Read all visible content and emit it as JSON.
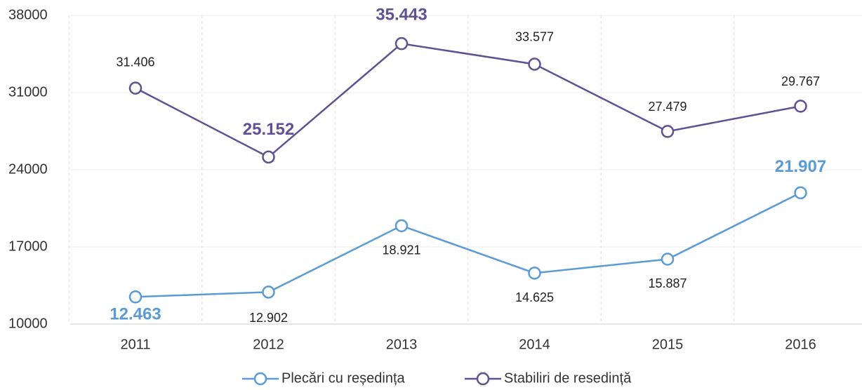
{
  "chart_data": {
    "type": "line",
    "categories": [
      "2011",
      "2012",
      "2013",
      "2014",
      "2015",
      "2016"
    ],
    "series": [
      {
        "name": "Plecări cu reședința",
        "color": "#5b9bd5",
        "values": [
          12463,
          12902,
          18921,
          14625,
          15887,
          21907
        ],
        "value_labels": [
          "12.463",
          "12.902",
          "18.921",
          "14.625",
          "15.887",
          "21.907"
        ]
      },
      {
        "name": "Stabiliri de resedință",
        "color": "#5f5193",
        "values": [
          31406,
          25152,
          35443,
          33577,
          27479,
          29767
        ],
        "value_labels": [
          "31.406",
          "25.152",
          "35.443",
          "33.577",
          "27.479",
          "29.767"
        ]
      }
    ],
    "ylim": [
      10000,
      38000
    ],
    "yticks": [
      10000,
      17000,
      24000,
      31000,
      38000
    ],
    "grid": true,
    "legend": "bottom"
  }
}
